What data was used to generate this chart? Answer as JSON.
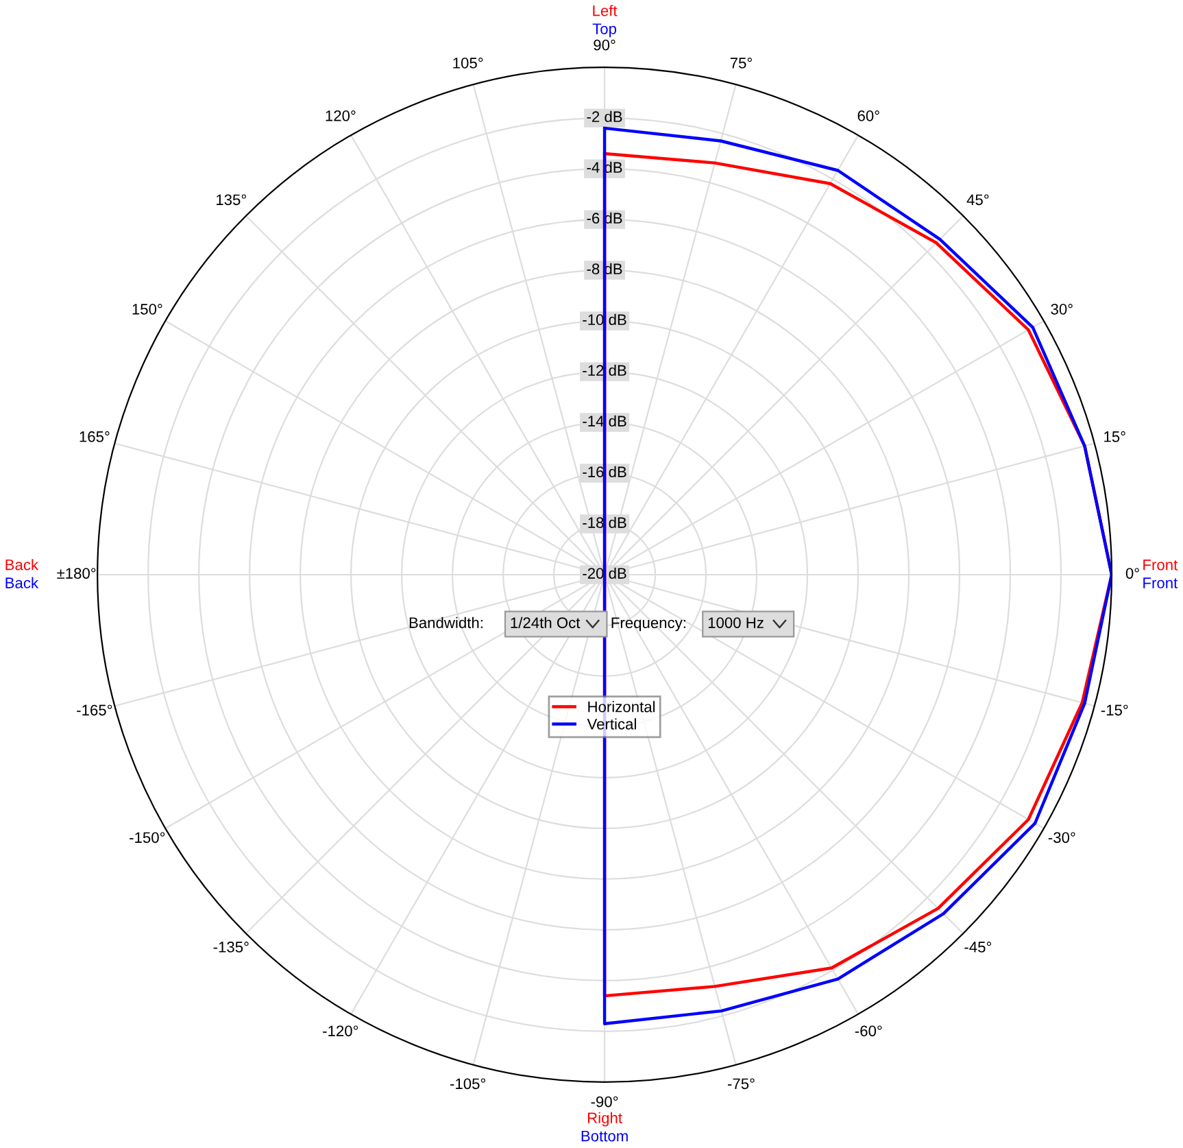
{
  "chart_data": {
    "type": "radar",
    "categories": [
      "90°",
      "75°",
      "60°",
      "45°",
      "30°",
      "15°",
      "0°",
      "-15°",
      "-30°",
      "-45°",
      "-60°",
      "-75°",
      "-90°",
      "-105°",
      "-120°",
      "-135°",
      "-150°",
      "-165°",
      "±180°",
      "165°",
      "150°",
      "135°",
      "120°",
      "105°"
    ],
    "ylim": [
      -20,
      0
    ],
    "yticks": [
      {
        "value": -20,
        "label": "-20 dB"
      },
      {
        "value": -18,
        "label": "-18 dB"
      },
      {
        "value": -16,
        "label": "-16 dB"
      },
      {
        "value": -14,
        "label": "-14 dB"
      },
      {
        "value": -12,
        "label": "-12 dB"
      },
      {
        "value": -10,
        "label": "-10 dB"
      },
      {
        "value": -8,
        "label": "-8 dB"
      },
      {
        "value": -6,
        "label": "-6 dB"
      },
      {
        "value": -4,
        "label": "-4 dB"
      },
      {
        "value": -2,
        "label": "-2 dB"
      }
    ],
    "grid": true,
    "legend": "center",
    "series": [
      {
        "name": "Horizontal",
        "color": "#ff0000",
        "values": [
          -3.4,
          -3.2,
          -2.2,
          -1.5,
          -0.7,
          -0.4,
          0,
          -0.5,
          -0.7,
          -1.4,
          -2.1,
          -3.2,
          -3.4,
          null,
          null,
          null,
          null,
          null,
          null,
          null,
          null,
          null,
          null,
          null
        ]
      },
      {
        "name": "Vertical",
        "color": "#0000ff",
        "values": [
          -2.4,
          -2.3,
          -1.6,
          -1.3,
          -0.5,
          -0.4,
          0,
          -0.4,
          -0.4,
          -1.1,
          -1.6,
          -2.2,
          -2.3,
          null,
          null,
          null,
          null,
          null,
          null,
          null,
          null,
          null,
          null,
          null
        ]
      }
    ],
    "annotations": [
      "Left",
      "Top",
      "Right",
      "Bottom",
      "Front",
      "Front",
      "Back",
      "Back",
      "Bandwidth:",
      "1/24th Oct",
      "Frequency:",
      "1000 Hz"
    ]
  }
}
